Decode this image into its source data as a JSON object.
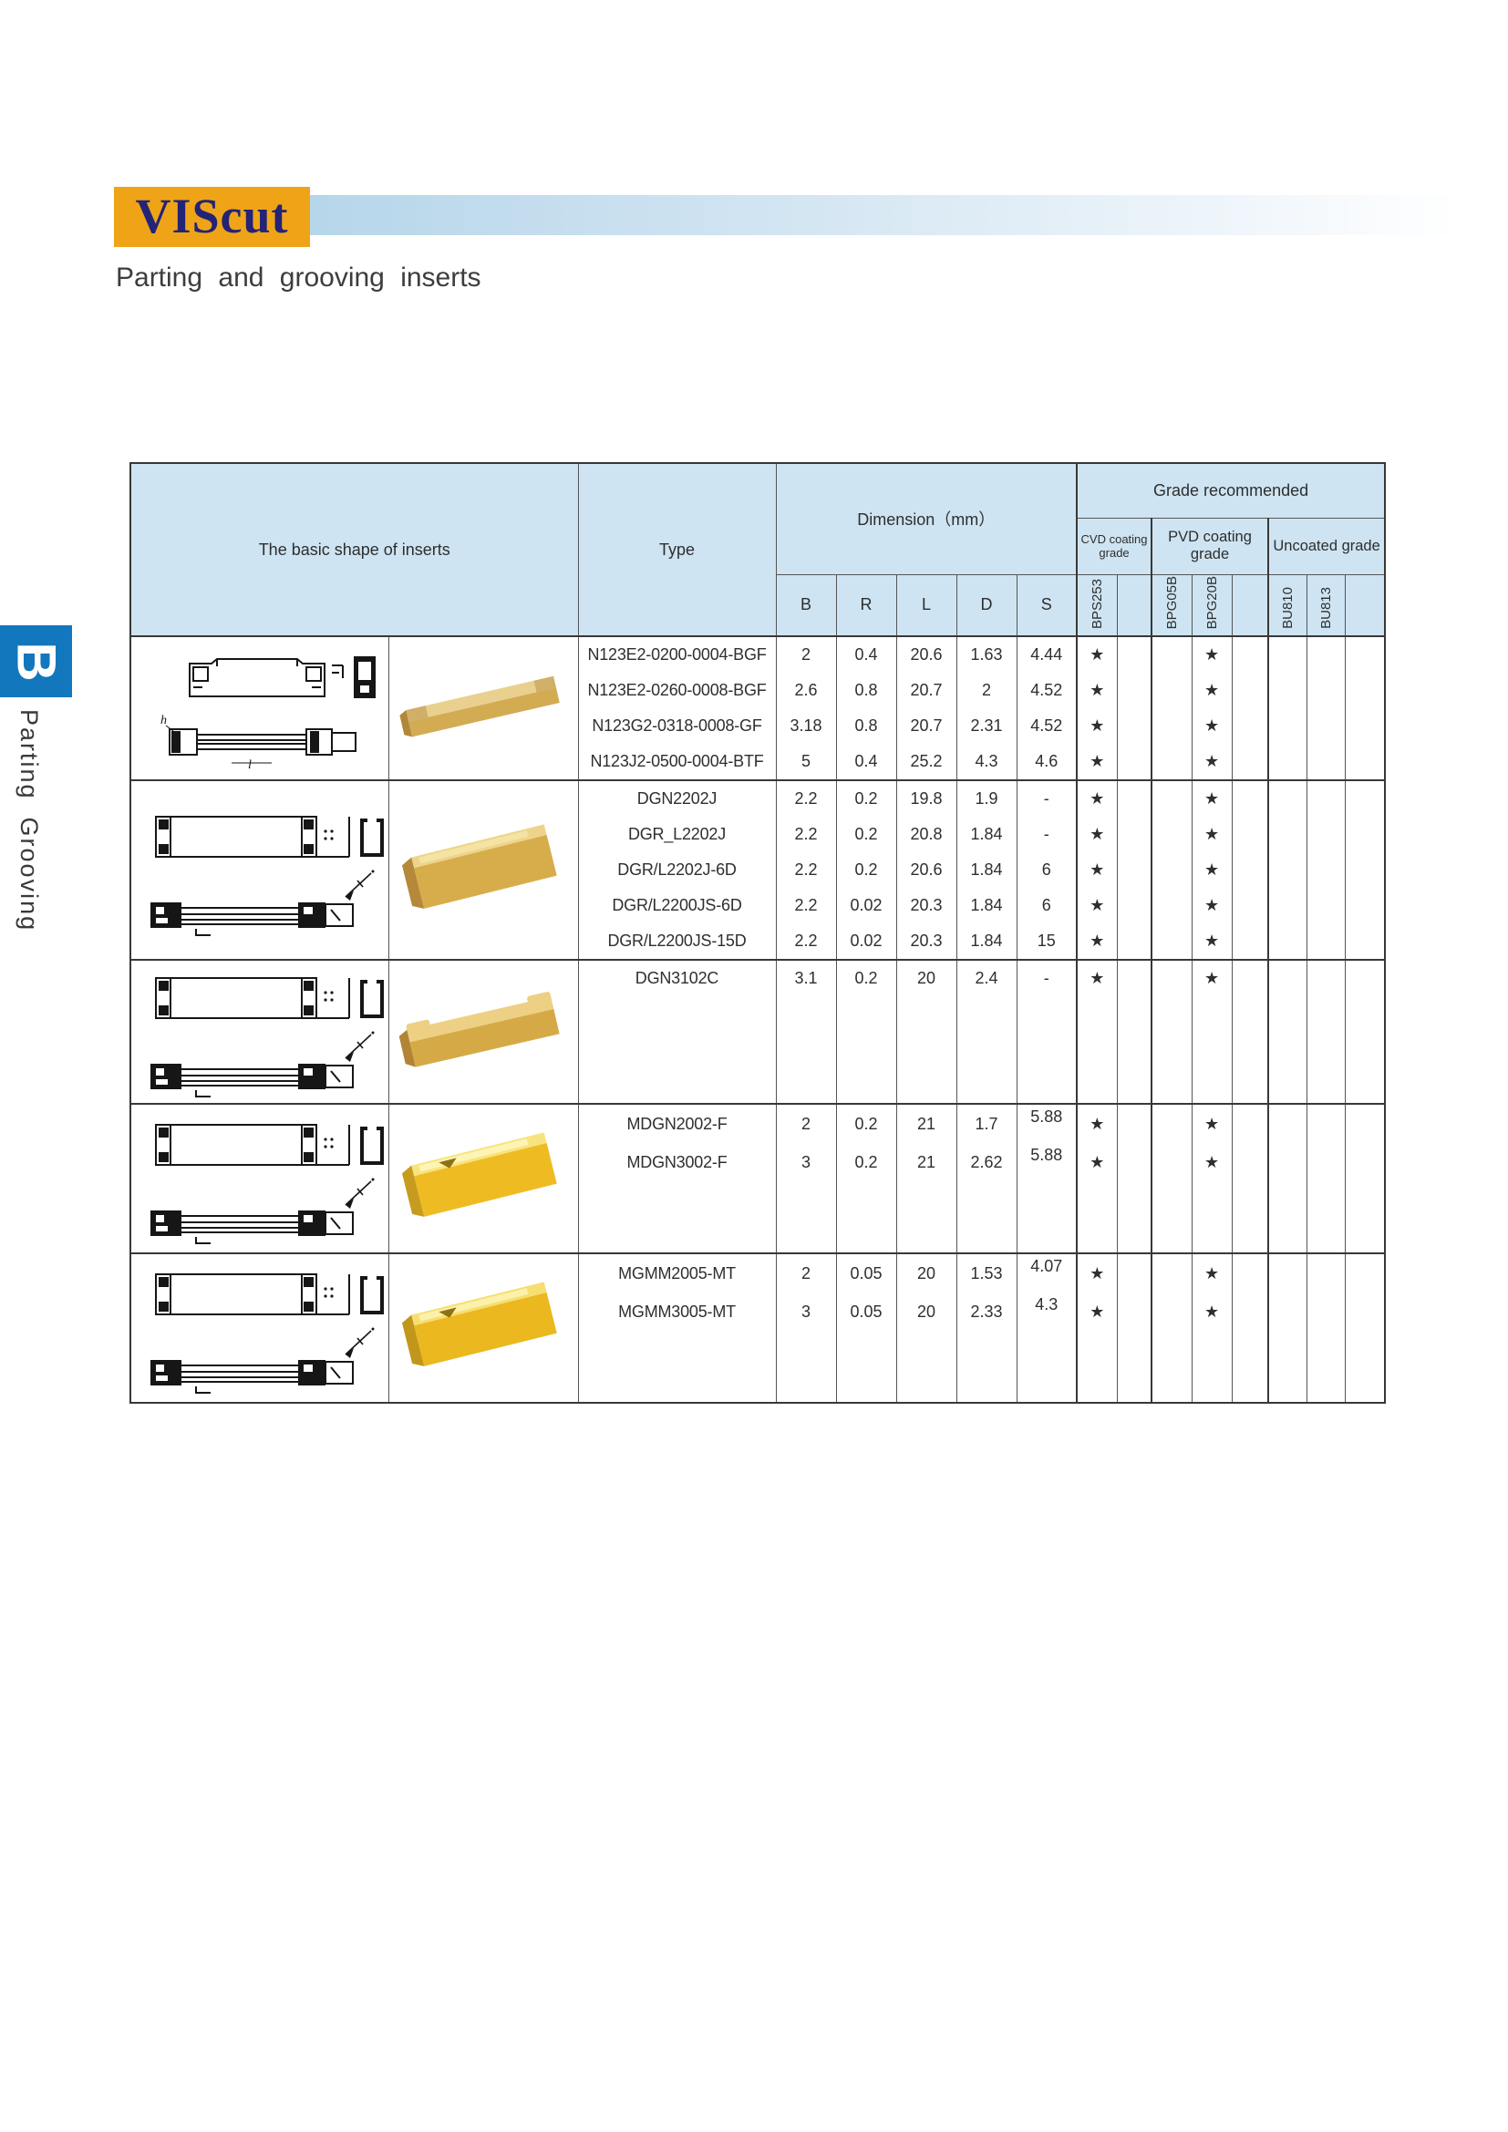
{
  "page": {
    "logo_text": "VIScut",
    "title": "Parting and grooving inserts"
  },
  "sidebar": {
    "tab_letter": "B",
    "label": "Parting  Grooving"
  },
  "table": {
    "star_symbol": "★",
    "headers": {
      "shape": "The basic shape of inserts",
      "type": "Type",
      "dimension": "Dimension（mm）",
      "dims": [
        "B",
        "R",
        "L",
        "D",
        "S"
      ],
      "grade": "Grade recommended",
      "grade_groups": [
        {
          "label": "CVD coating grade",
          "codes": [
            "BPS253",
            ""
          ]
        },
        {
          "label": "PVD coating grade",
          "codes": [
            "BPG05B",
            "BPG20B",
            ""
          ]
        },
        {
          "label": "Uncoated grade",
          "codes": [
            "BU810",
            "BU813",
            ""
          ]
        }
      ]
    },
    "groups": [
      {
        "drawing": "a",
        "photo": {
          "variant": "low",
          "colors": {
            "ctop": "#e9d08f",
            "cfront": "#d3ab52",
            "cside": "#b1873a"
          }
        },
        "rows": [
          {
            "type": "N123E2-0200-0004-BGF",
            "dims": [
              "2",
              "0.4",
              "20.6",
              "1.63",
              "4.44"
            ],
            "grades": [
              "★",
              "",
              "",
              "★",
              "",
              "",
              "",
              ""
            ]
          },
          {
            "type": "N123E2-0260-0008-BGF",
            "dims": [
              "2.6",
              "0.8",
              "20.7",
              "2",
              "4.52"
            ],
            "grades": [
              "★",
              "",
              "",
              "★",
              "",
              "",
              "",
              ""
            ]
          },
          {
            "type": "N123G2-0318-0008-GF",
            "dims": [
              "3.18",
              "0.8",
              "20.7",
              "2.31",
              "4.52"
            ],
            "grades": [
              "★",
              "",
              "",
              "★",
              "",
              "",
              "",
              ""
            ]
          },
          {
            "type": "N123J2-0500-0004-BTF",
            "dims": [
              "5",
              "0.4",
              "25.2",
              "4.3",
              "4.6"
            ],
            "grades": [
              "★",
              "",
              "",
              "★",
              "",
              "",
              "",
              ""
            ]
          }
        ]
      },
      {
        "drawing": "b",
        "photo": {
          "variant": "tall",
          "colors": {
            "ctop": "#eed48a",
            "cfront": "#d7ad4b",
            "cside": "#b5883a",
            "chl": "#f4e3a2",
            "cnotch": "transparent"
          }
        },
        "rows": [
          {
            "type": "DGN2202J",
            "dims": [
              "2.2",
              "0.2",
              "19.8",
              "1.9",
              "-"
            ],
            "grades": [
              "★",
              "",
              "",
              "★",
              "",
              "",
              "",
              ""
            ]
          },
          {
            "type": "DGR_L2202J",
            "dims": [
              "2.2",
              "0.2",
              "20.8",
              "1.84",
              "-"
            ],
            "grades": [
              "★",
              "",
              "",
              "★",
              "",
              "",
              "",
              ""
            ]
          },
          {
            "type": "DGR/L2202J-6D",
            "dims": [
              "2.2",
              "0.2",
              "20.6",
              "1.84",
              "6"
            ],
            "grades": [
              "★",
              "",
              "",
              "★",
              "",
              "",
              "",
              ""
            ]
          },
          {
            "type": "DGR/L2200JS-6D",
            "dims": [
              "2.2",
              "0.02",
              "20.3",
              "1.84",
              "6"
            ],
            "grades": [
              "★",
              "",
              "",
              "★",
              "",
              "",
              "",
              ""
            ]
          },
          {
            "type": "DGR/L2200JS-15D",
            "dims": [
              "2.2",
              "0.02",
              "20.3",
              "1.84",
              "15"
            ],
            "grades": [
              "★",
              "",
              "",
              "★",
              "",
              "",
              "",
              ""
            ]
          }
        ]
      },
      {
        "drawing": "b",
        "photo": {
          "variant": "block",
          "colors": {
            "ctop": "#edd083",
            "cfront": "#d5aa46",
            "cside": "#b18535"
          }
        },
        "rows": [
          {
            "type": "DGN3102C",
            "dims": [
              "3.1",
              "0.2",
              "20",
              "2.4",
              "-"
            ],
            "grades": [
              "★",
              "",
              "",
              "★",
              "",
              "",
              "",
              ""
            ]
          },
          {
            "type": "",
            "dims": [
              "",
              "",
              "",
              "",
              ""
            ],
            "grades": []
          },
          {
            "type": "",
            "dims": [
              "",
              "",
              "",
              "",
              ""
            ],
            "grades": []
          },
          {
            "type": "",
            "dims": [
              "",
              "",
              "",
              "",
              ""
            ],
            "grades": []
          }
        ]
      },
      {
        "drawing": "b",
        "photo": {
          "variant": "tall",
          "colors": {
            "ctop": "#f8e47e",
            "cfront": "#eebc22",
            "cside": "#c79b1e",
            "chl": "#fdf4b5",
            "cnotch": "#8f7114"
          }
        },
        "rows": [
          {
            "type": "MDGN2002-F",
            "dims": [
              "2",
              "0.2",
              "21",
              "1.7",
              "5.88"
            ],
            "s_raised": true,
            "grades": [
              "★",
              "",
              "",
              "★",
              "",
              "",
              "",
              ""
            ]
          },
          {
            "type": "MDGN3002-F",
            "dims": [
              "3",
              "0.2",
              "21",
              "2.62",
              "5.88"
            ],
            "s_raised": true,
            "grades": [
              "★",
              "",
              "",
              "★",
              "",
              "",
              "",
              ""
            ]
          },
          {
            "type": "",
            "dims": [
              "",
              "",
              "",
              "",
              ""
            ],
            "grades": []
          },
          {
            "type": "",
            "dims": [
              "",
              "",
              "",
              "",
              ""
            ],
            "grades": []
          }
        ]
      },
      {
        "drawing": "b",
        "photo": {
          "variant": "tall",
          "colors": {
            "ctop": "#f6df70",
            "cfront": "#ebb81f",
            "cside": "#c2961b",
            "chl": "#fcf1aa",
            "cnotch": "#8f7114"
          }
        },
        "rows": [
          {
            "type": "MGMM2005-MT",
            "dims": [
              "2",
              "0.05",
              "20",
              "1.53",
              "4.07"
            ],
            "s_raised": true,
            "grades": [
              "★",
              "",
              "",
              "★",
              "",
              "",
              "",
              ""
            ]
          },
          {
            "type": "MGMM3005-MT",
            "dims": [
              "3",
              "0.05",
              "20",
              "2.33",
              "4.3"
            ],
            "s_raised": true,
            "grades": [
              "★",
              "",
              "",
              "★",
              "",
              "",
              "",
              ""
            ]
          },
          {
            "type": "",
            "dims": [
              "",
              "",
              "",
              "",
              ""
            ],
            "grades": []
          },
          {
            "type": "",
            "dims": [
              "",
              "",
              "",
              "",
              ""
            ],
            "grades": []
          }
        ]
      }
    ]
  }
}
